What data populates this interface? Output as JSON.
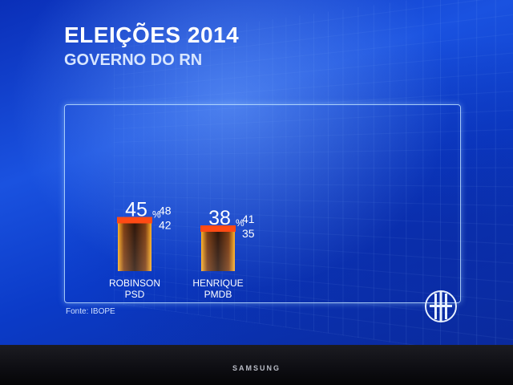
{
  "header": {
    "title": "ELEIÇÕES 2014",
    "subtitle": "GOVERNO DO RN"
  },
  "footer": {
    "source": "Fonte: IBOPE"
  },
  "tv": {
    "brand": "SAMSUNG"
  },
  "colors": {
    "bar_top": "#ff4a14",
    "bar_glow": "#ffb020",
    "panel_border": "#bfe3ff",
    "text": "#ffffff"
  },
  "chart_data": {
    "type": "bar",
    "categories": [
      "ROBINSON",
      "HENRIQUE"
    ],
    "parties": [
      "PSD",
      "PMDB"
    ],
    "values": [
      45,
      38
    ],
    "value_suffix": "%",
    "upper_bound": [
      48,
      41
    ],
    "lower_bound": [
      42,
      35
    ],
    "ylim": [
      0,
      100
    ],
    "grid": false
  }
}
